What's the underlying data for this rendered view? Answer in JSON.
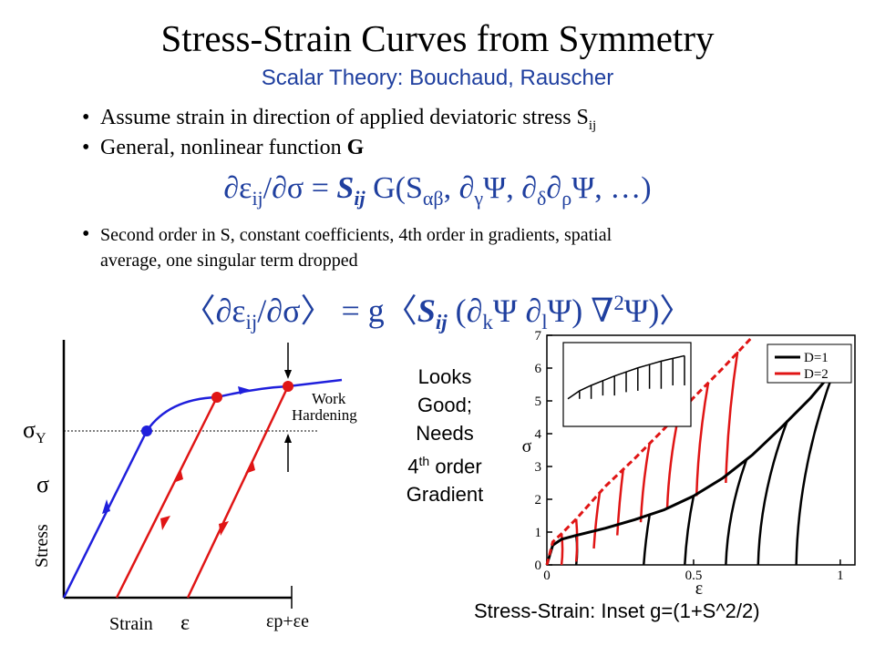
{
  "slide": {
    "title": "Stress-Strain Curves from Symmetry",
    "subtitle": "Scalar Theory: Bouchaud, Rauscher",
    "bullet1": "Assume strain in direction of applied deviatoric stress S",
    "bullet1_sub": "ij",
    "bullet2_prefix": "General, nonlinear function ",
    "bullet2_bold": "G",
    "equation1": {
      "lhs": "∂ε",
      "lhs_sub": "ij",
      "mid": "/∂σ = ",
      "S": "S",
      "S_sub": "ij",
      "G": " G(S",
      "G_sub": "αβ",
      "rest1": ", ∂",
      "rest1_sub": "γ",
      "rest2": "Ψ, ∂",
      "rest2_sub": "δ",
      "rest3": "∂",
      "rest3_sub": "ρ",
      "rest4": "Ψ, …)"
    },
    "bullet3_line1": "Second order in S, constant coefficients, 4th order in gradients, spatial",
    "bullet3_line2": "average, one singular term dropped",
    "equation2": {
      "open": "〈∂ε",
      "open_sub": "ij",
      "mid": "/∂σ〉 = g〈",
      "S": "S",
      "S_sub": "ij",
      "p1": " (∂",
      "p1_sub": "k",
      "p2": "Ψ ∂",
      "p2_sub": "l",
      "p3": "Ψ) ∇",
      "p3_sup": "2",
      "p4": "Ψ)〉"
    },
    "side_note": [
      "Looks",
      "Good;",
      "Needs",
      "4th order",
      "Gradient"
    ],
    "caption": "Stress-Strain: Inset g=(1+S^2/2)"
  },
  "left_diagram": {
    "labels": {
      "sigma_y": "σ",
      "sigma_y_sub": "Y",
      "sigma": "σ",
      "stress": "Stress",
      "strain": "Strain",
      "epsilon": "ε",
      "ep_ee": "εp+εe",
      "work": "Work",
      "hardening": "Hardening"
    },
    "colors": {
      "loading": "#1f1fdc",
      "unloading": "#e01515",
      "axis": "#000000"
    }
  },
  "chart_data": {
    "type": "line",
    "xlabel": "ε",
    "ylabel": "σ",
    "xlim": [
      0,
      1.05
    ],
    "ylim": [
      0,
      7
    ],
    "x_ticks": [
      "0",
      "0.5",
      "1"
    ],
    "y_ticks": [
      "0",
      "1",
      "2",
      "3",
      "4",
      "5",
      "6",
      "7"
    ],
    "legend_position": "top-right",
    "series": [
      {
        "name": "D=1",
        "color": "#000000",
        "x": [
          0.0,
          0.02,
          0.05,
          0.1,
          0.2,
          0.3,
          0.4,
          0.5,
          0.6,
          0.7,
          0.8,
          0.9,
          0.98
        ],
        "y": [
          0.0,
          0.6,
          0.78,
          0.9,
          1.12,
          1.38,
          1.68,
          2.1,
          2.65,
          3.35,
          4.2,
          5.1,
          5.95
        ]
      },
      {
        "name": "D=2",
        "color": "#e01515",
        "x": [
          0.0,
          0.02,
          0.05,
          0.1,
          0.15,
          0.2,
          0.3,
          0.4,
          0.5,
          0.6,
          0.7
        ],
        "y": [
          0.0,
          0.7,
          0.95,
          1.4,
          1.9,
          2.4,
          3.25,
          4.15,
          5.1,
          6.0,
          6.95
        ]
      }
    ],
    "unloading_branches": {
      "D=1": [
        {
          "x": [
            0.1,
            0.1
          ],
          "y": [
            0.9,
            0.0
          ]
        },
        {
          "x": [
            0.35,
            0.33
          ],
          "y": [
            1.52,
            0.0
          ]
        },
        {
          "x": [
            0.5,
            0.47
          ],
          "y": [
            2.1,
            0.0
          ]
        },
        {
          "x": [
            0.68,
            0.61
          ],
          "y": [
            3.2,
            0.0
          ]
        },
        {
          "x": [
            0.82,
            0.72
          ],
          "y": [
            4.4,
            0.0
          ]
        },
        {
          "x": [
            0.98,
            0.85
          ],
          "y": [
            5.95,
            0.0
          ]
        }
      ],
      "D=2": [
        {
          "x": [
            0.05,
            0.05
          ],
          "y": [
            0.95,
            0.0
          ]
        },
        {
          "x": [
            0.1,
            0.1
          ],
          "y": [
            1.4,
            0.1
          ]
        },
        {
          "x": [
            0.18,
            0.16
          ],
          "y": [
            2.2,
            0.5
          ]
        },
        {
          "x": [
            0.26,
            0.24
          ],
          "y": [
            2.9,
            0.9
          ]
        },
        {
          "x": [
            0.35,
            0.32
          ],
          "y": [
            3.7,
            1.3
          ]
        },
        {
          "x": [
            0.45,
            0.41
          ],
          "y": [
            4.6,
            1.7
          ]
        },
        {
          "x": [
            0.55,
            0.51
          ],
          "y": [
            5.55,
            2.1
          ]
        },
        {
          "x": [
            0.65,
            0.61
          ],
          "y": [
            6.5,
            2.5
          ]
        }
      ]
    },
    "inset": {
      "sawtooth": {
        "x": [
          0.1,
          0.2,
          0.3,
          0.4,
          0.5,
          0.6,
          0.7,
          0.8,
          0.9,
          1.0
        ],
        "peak": [
          0.42,
          0.5,
          0.57,
          0.64,
          0.7,
          0.76,
          0.81,
          0.86,
          0.9,
          0.94
        ],
        "floor": [
          0.3,
          0.3,
          0.35,
          0.35,
          0.4,
          0.42,
          0.45,
          0.45,
          0.5,
          0.5
        ]
      }
    }
  }
}
